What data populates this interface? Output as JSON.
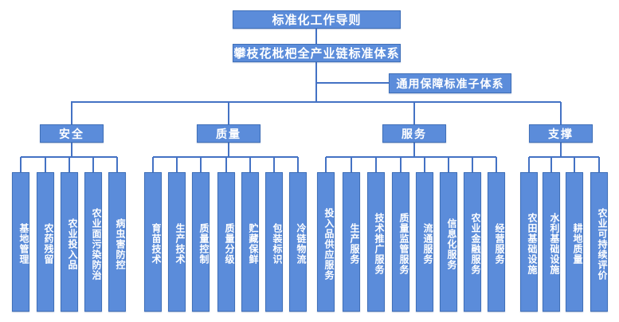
{
  "tree": {
    "root": "标准化工作导则",
    "system": "攀枝花枇杷全产业链标准体系",
    "subsystem": "通用保障标准子体系",
    "groups": [
      {
        "label": "安全",
        "children": [
          "基地管理",
          "农药残留",
          "农业投入品",
          "农业面污染防治",
          "病虫害防控"
        ]
      },
      {
        "label": "质量",
        "children": [
          "育苗技术",
          "生产技术",
          "质量控制",
          "质量分级",
          "贮藏保鲜",
          "包装标识",
          "冷链物流"
        ]
      },
      {
        "label": "服务",
        "children": [
          "投入品供应服务",
          "生产服务",
          "技术推广服务",
          "质量监管服务",
          "流通服务",
          "信息化服务",
          "农业金融服务",
          "经营服务"
        ]
      },
      {
        "label": "支撑",
        "children": [
          "农田基础设施",
          "水利基础设施",
          "耕地质量",
          "农业可持续评价"
        ]
      }
    ]
  },
  "colors": {
    "box_fill": "#5B8CDA",
    "box_border": "#4070B8",
    "connector": "#4472C4",
    "text": "#FFFFFF",
    "background": "#FFFFFF"
  }
}
